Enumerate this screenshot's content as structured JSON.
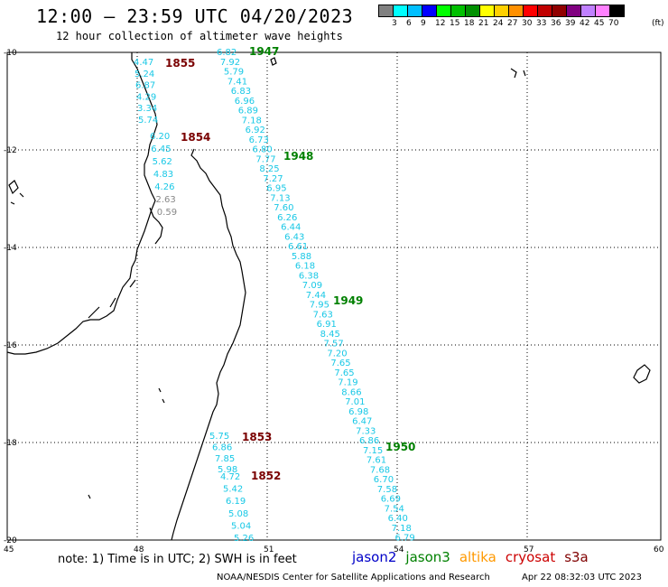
{
  "header": {
    "title": "12:00 – 23:59 UTC 04/20/2023",
    "subtitle": "12 hour collection of altimeter wave heights"
  },
  "colorbar": {
    "colors": [
      "#808080",
      "#00ffff",
      "#00bfff",
      "#0000ff",
      "#00ff00",
      "#00c000",
      "#009000",
      "#ffff00",
      "#ffd000",
      "#ff9000",
      "#ff0000",
      "#c00000",
      "#900000",
      "#800080",
      "#c080ff",
      "#ff80ff",
      "#000000"
    ],
    "labels": [
      "3",
      "6",
      "9",
      "12",
      "15",
      "18",
      "21",
      "24",
      "27",
      "30",
      "33",
      "36",
      "39",
      "42",
      "45",
      "70",
      "(ft)"
    ]
  },
  "axes": {
    "lat_labels": [
      "-10",
      "-12",
      "-14",
      "-16",
      "-18",
      "-20"
    ],
    "lon_labels": [
      "45",
      "48",
      "51",
      "54",
      "57",
      "60"
    ]
  },
  "tracks": [
    {
      "id": "1855",
      "color": "#7a0000",
      "values": [
        "4.47",
        "5.24",
        "6.87",
        "4.29",
        "3.34",
        "5.74"
      ],
      "value_colors": [
        "#19c8e6",
        "#19c8e6",
        "#19c8e6",
        "#19c8e6",
        "#19c8e6",
        "#19c8e6"
      ]
    },
    {
      "id": "1854",
      "color": "#7a0000",
      "values": [
        "6.20",
        "6.45",
        "5.62",
        "4.83",
        "4.26",
        "2.63",
        "0.59"
      ],
      "value_colors": [
        "#19c8e6",
        "#19c8e6",
        "#19c8e6",
        "#19c8e6",
        "#19c8e6",
        "#888888",
        "#888888"
      ]
    },
    {
      "id": "1947",
      "color": "#008000",
      "values": [
        "6.82",
        "7.92",
        "5.79",
        "7.41",
        "6.83",
        "6.96",
        "6.89",
        "7.18",
        "6.92",
        "6.73",
        "6.80",
        "7.77",
        "8.25",
        "7.27",
        "6.95",
        "7.13",
        "7.60",
        "6.26",
        "6.44",
        "6.43",
        "6.61",
        "5.88",
        "6.18",
        "6.38",
        "7.09",
        "7.44",
        "7.95",
        "7.63",
        "6.91",
        "8.45",
        "7.57",
        "7.20",
        "7.65",
        "7.65",
        "7.19",
        "8.66",
        "7.01",
        "6.98",
        "6.47",
        "7.33",
        "6.86",
        "7.15",
        "7.61",
        "7.68",
        "6.70",
        "7.58",
        "6.69",
        "7.54",
        "6.40",
        "7.18",
        "6.79"
      ]
    },
    {
      "id": "1948",
      "color": "#008000"
    },
    {
      "id": "1949",
      "color": "#008000"
    },
    {
      "id": "1950",
      "color": "#008000"
    },
    {
      "id": "1853",
      "color": "#7a0000",
      "values": [
        "5.75",
        "6.86",
        "7.85",
        "5.98"
      ]
    },
    {
      "id": "1852",
      "color": "#7a0000",
      "values": [
        "4.72",
        "5.42",
        "6.19",
        "5.08",
        "5.04",
        "5.26"
      ]
    }
  ],
  "footer": {
    "note": "note: 1) Time is in UTC; 2) SWH is in feet",
    "satellites": [
      {
        "name": "jason2",
        "color": "#0000c8"
      },
      {
        "name": "jason3",
        "color": "#008000"
      },
      {
        "name": "altika",
        "color": "#ff9900"
      },
      {
        "name": "cryosat",
        "color": "#cc0000"
      },
      {
        "name": "s3a",
        "color": "#800000"
      }
    ],
    "credit": "NOAA/NESDIS Center for Satellite Applications and Research",
    "timestamp": "Apr 22 08:32:03 UTC 2023"
  }
}
